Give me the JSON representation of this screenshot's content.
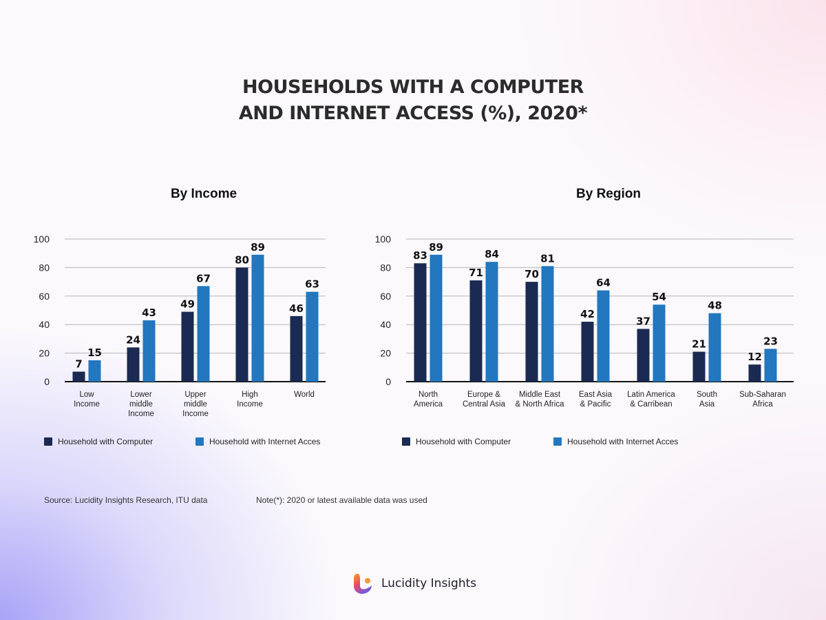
{
  "title_lines": [
    "HOUSEHOLDS WITH A COMPUTER",
    "AND INTERNET ACCESS (%), 2020*"
  ],
  "colors": {
    "computer": "#1b2a52",
    "internet": "#2277be",
    "grid": "#b5b5b5",
    "axis": "#111111"
  },
  "chart_data": [
    {
      "type": "bar",
      "title": "By Income",
      "categories": [
        [
          "Low",
          "Income"
        ],
        [
          "Lower",
          "middle",
          "Income"
        ],
        [
          "Upper",
          "middle",
          "Income"
        ],
        [
          "High",
          "Income"
        ],
        [
          "World"
        ]
      ],
      "series": [
        {
          "name": "Household with Computer",
          "values": [
            7,
            24,
            49,
            80,
            46
          ]
        },
        {
          "name": "Household with Internet Acces",
          "values": [
            15,
            43,
            67,
            89,
            63
          ]
        }
      ],
      "ylim": [
        0,
        100
      ],
      "yticks": [
        0,
        20,
        40,
        60,
        80,
        100
      ],
      "grid": true,
      "legend": "bottom"
    },
    {
      "type": "bar",
      "title": "By Region",
      "categories": [
        [
          "North",
          "America"
        ],
        [
          "Europe &",
          "Central Asia"
        ],
        [
          "Middle East",
          "& North Africa"
        ],
        [
          "East Asia",
          "& Pacific"
        ],
        [
          "Latin America",
          "& Carribean"
        ],
        [
          "South",
          "Asia"
        ],
        [
          "Sub-Saharan",
          "Africa"
        ]
      ],
      "series": [
        {
          "name": "Household with Computer",
          "values": [
            83,
            71,
            70,
            42,
            37,
            21,
            12
          ]
        },
        {
          "name": "Household with Internet Acces",
          "values": [
            89,
            84,
            81,
            64,
            54,
            48,
            23
          ]
        }
      ],
      "ylim": [
        0,
        100
      ],
      "yticks": [
        0,
        20,
        40,
        60,
        80,
        100
      ],
      "grid": true,
      "legend": "bottom"
    }
  ],
  "footer": {
    "source": "Source: Lucidity Insights Research, ITU data",
    "note": "Note(*): 2020 or latest available data was used"
  },
  "brand": {
    "name": "Lucidity Insights",
    "icon": "lucidity-logo-icon"
  }
}
